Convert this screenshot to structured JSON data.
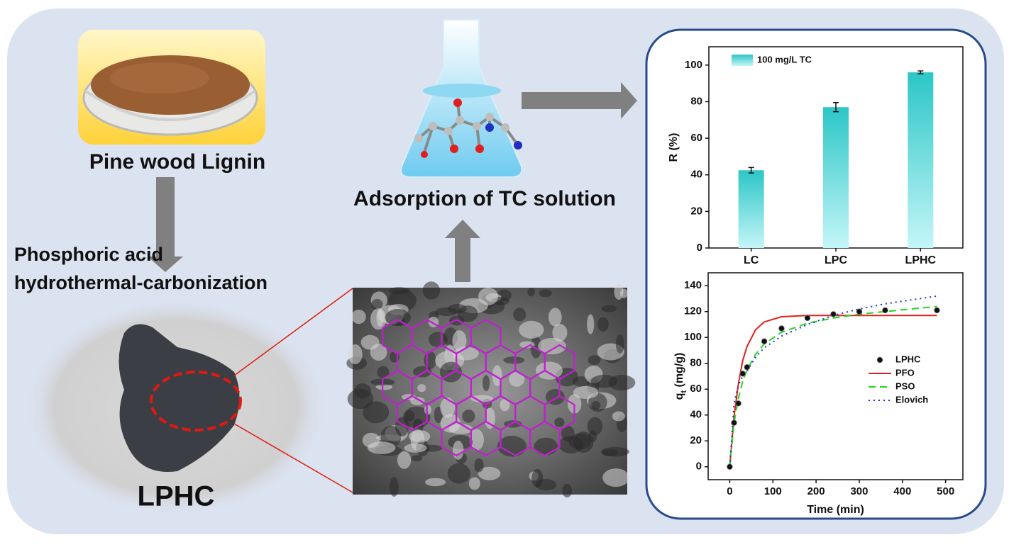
{
  "diagram": {
    "lignin_label": "Pine wood Lignin",
    "process_label": [
      "Phosphoric acid",
      "hydrothermal-carbonization"
    ],
    "product_label": "LPHC",
    "adsorption_label": "Adsorption of TC solution"
  },
  "chart_data": [
    {
      "type": "bar",
      "ylabel": "R (%)",
      "categories": [
        "LC",
        "LPC",
        "LPHC"
      ],
      "series": [
        {
          "name": "100 mg/L TC",
          "color": "#3cc8c8",
          "values": [
            42.5,
            77,
            96
          ],
          "errors": [
            1.5,
            2.5,
            0.8
          ]
        }
      ],
      "ylim": [
        0,
        110
      ],
      "yticks": [
        0,
        20,
        40,
        60,
        80,
        100
      ],
      "legend": "upper-left"
    },
    {
      "type": "line",
      "xlabel": "Time (min)",
      "ylabel": [
        "q",
        "t",
        " (mg/g)"
      ],
      "xlim": [
        -50,
        540
      ],
      "xticks": [
        0,
        100,
        200,
        300,
        400,
        500
      ],
      "ylim": [
        -10,
        150
      ],
      "yticks": [
        0,
        20,
        40,
        60,
        80,
        100,
        120,
        140
      ],
      "legend": "center-right",
      "series": [
        {
          "name": "LPHC",
          "color": "#111111",
          "marker": true,
          "x": [
            0,
            10,
            20,
            30,
            40,
            80,
            120,
            180,
            240,
            300,
            360,
            480
          ],
          "values": [
            0,
            34,
            49,
            72,
            77,
            97,
            107,
            115,
            118,
            120,
            121,
            121
          ]
        },
        {
          "name": "PFO",
          "color": "#e0201a",
          "dash": "solid",
          "x": [
            0,
            10,
            20,
            30,
            40,
            60,
            80,
            120,
            180,
            240,
            300,
            360,
            420,
            480
          ],
          "values": [
            0,
            39,
            64,
            82,
            93,
            106,
            112,
            116,
            117,
            117,
            117,
            117,
            117,
            117
          ]
        },
        {
          "name": "PSO",
          "color": "#22d622",
          "dash": "dashed",
          "x": [
            0,
            10,
            20,
            30,
            40,
            60,
            80,
            120,
            180,
            240,
            300,
            360,
            420,
            480
          ],
          "values": [
            0,
            34,
            53,
            66,
            75,
            87,
            95,
            104,
            111,
            115,
            118,
            120,
            122,
            124
          ]
        },
        {
          "name": "Elovich",
          "color": "#1a2fd6",
          "dash": "dotted",
          "x": [
            0,
            10,
            20,
            30,
            40,
            60,
            80,
            120,
            180,
            240,
            300,
            360,
            420,
            480
          ],
          "values": [
            0,
            49,
            63,
            70,
            74,
            85,
            92,
            101,
            110,
            117,
            122,
            126,
            129,
            132
          ]
        }
      ]
    }
  ]
}
